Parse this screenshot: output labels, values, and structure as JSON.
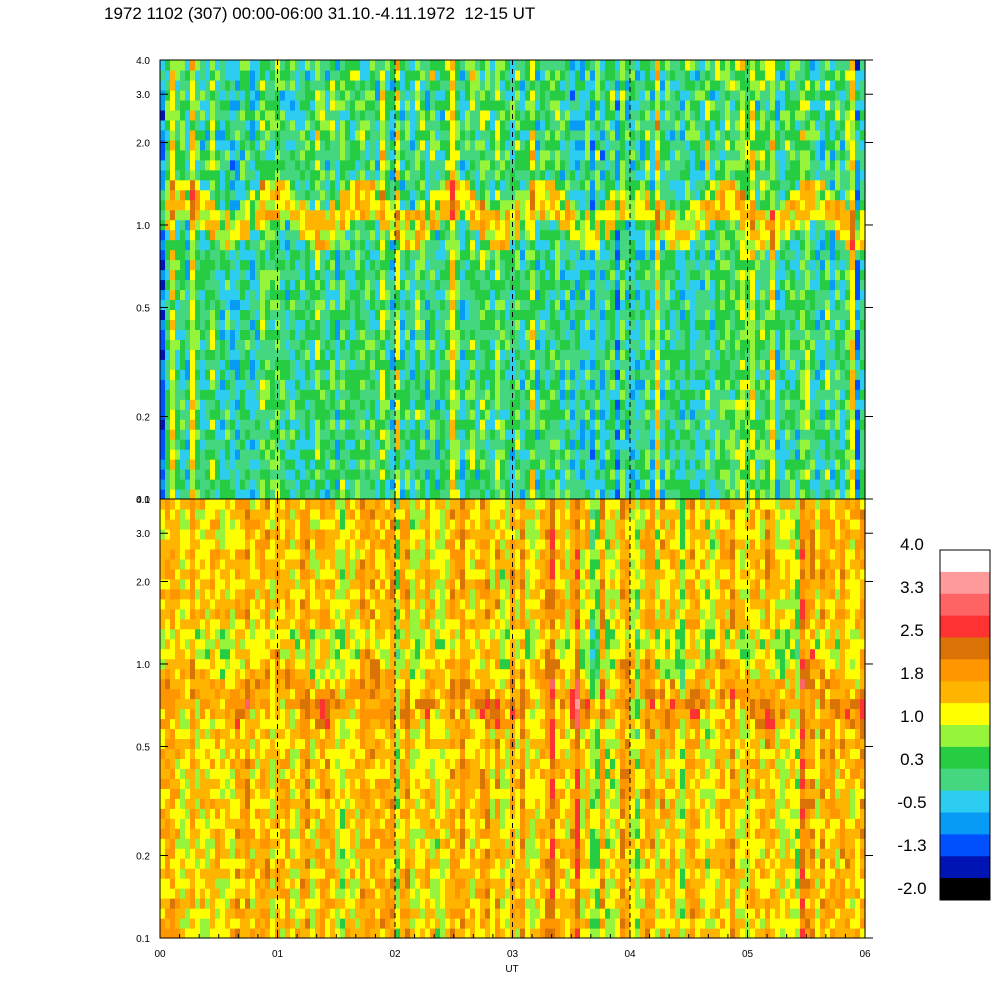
{
  "page_title": "1972 1102 (307) 00:00-06:00 31.10.-4.11.1972  12-15 UT",
  "chart_data": [
    {
      "type": "heatmap",
      "panel": "upper",
      "y_ticks": [
        "0.1",
        "0.2",
        "0.5",
        "1.0",
        "2.0",
        "3.0",
        "4.0"
      ],
      "y_tick_values": [
        0.1,
        0.2,
        0.5,
        1.0,
        2.0,
        3.0,
        4.0
      ],
      "ylim": [
        0.1,
        4.0
      ],
      "y_scale": "log",
      "x_ticks": [
        "00",
        "01",
        "02",
        "03",
        "04",
        "05",
        "06"
      ],
      "xlim": [
        0,
        6
      ],
      "dashed_gridlines_at_x": [
        1,
        2,
        3,
        4,
        5
      ],
      "dominant_colors": [
        "#44d77f",
        "#26cd42",
        "#2ccdf0",
        "#079bf5",
        "#0050ff",
        "#ffff00"
      ],
      "bright_band": {
        "center_y": 1.1,
        "color": "#ffff00"
      }
    },
    {
      "type": "heatmap",
      "panel": "lower",
      "y_ticks": [
        "0.1",
        "0.2",
        "0.5",
        "1.0",
        "2.0",
        "3.0",
        "4.0"
      ],
      "y_tick_values": [
        0.1,
        0.2,
        0.5,
        1.0,
        2.0,
        3.0,
        4.0
      ],
      "ylim": [
        0.1,
        4.0
      ],
      "y_scale": "log",
      "x_ticks": [
        "00",
        "01",
        "02",
        "03",
        "04",
        "05",
        "06"
      ],
      "xlabel": "UT",
      "xlim": [
        0,
        6
      ],
      "dashed_gridlines_at_x": [
        1,
        2,
        3,
        4,
        5
      ],
      "dominant_colors": [
        "#ffb400",
        "#ff9600",
        "#ffff00",
        "#96f53b",
        "#26cd42"
      ],
      "bright_band": {
        "center_y": 0.8,
        "color": "#d97306"
      }
    }
  ],
  "colorbar": {
    "labels": [
      "4.0",
      "3.3",
      "2.5",
      "1.8",
      "1.0",
      "0.3",
      "-0.5",
      "-1.3",
      "-2.0"
    ],
    "colors_top_to_bottom": [
      "#ffffff",
      "#ff9a9a",
      "#ff6464",
      "#ff3232",
      "#d97306",
      "#ff9600",
      "#ffb400",
      "#ffff00",
      "#96f53b",
      "#26cd42",
      "#44d77f",
      "#2ccdf0",
      "#079bf5",
      "#0050ff",
      "#0014b4",
      "#000000"
    ]
  }
}
